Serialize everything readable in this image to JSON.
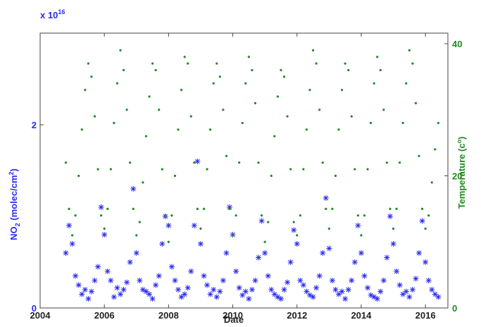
{
  "chart_data": {
    "type": "scatter",
    "xlabel": "Date",
    "ylabel_parts": [
      "NO",
      "2",
      " (molec/cm",
      "2",
      ")"
    ],
    "y2label_parts": [
      "Temperature (c",
      "o",
      ")"
    ],
    "y_multiplier": "x 10",
    "y_multiplier_exponent": "16",
    "xlim": [
      2004,
      2016.7
    ],
    "xticks": [
      2004,
      2006,
      2008,
      2010,
      2012,
      2014,
      2016
    ],
    "ylim": [
      0,
      3
    ],
    "yticks": [
      0,
      2
    ],
    "y2lim": [
      0,
      41.6
    ],
    "y2ticks": [
      0,
      20,
      40
    ],
    "grid": false,
    "x": [
      2004.8,
      2004.9,
      2005.0,
      2005.1,
      2005.2,
      2005.3,
      2005.4,
      2005.5,
      2005.6,
      2005.7,
      2005.8,
      2005.9,
      2006.0,
      2006.1,
      2006.2,
      2006.3,
      2006.4,
      2006.5,
      2006.6,
      2006.7,
      2006.8,
      2006.9,
      2007.0,
      2007.1,
      2007.2,
      2007.3,
      2007.4,
      2007.5,
      2007.6,
      2007.7,
      2007.8,
      2007.9,
      2008.0,
      2008.1,
      2008.2,
      2008.3,
      2008.4,
      2008.5,
      2008.6,
      2008.7,
      2008.8,
      2008.9,
      2009.0,
      2009.1,
      2009.2,
      2009.3,
      2009.4,
      2009.5,
      2009.6,
      2009.7,
      2009.8,
      2009.9,
      2010.0,
      2010.1,
      2010.2,
      2010.3,
      2010.4,
      2010.5,
      2010.6,
      2010.7,
      2010.8,
      2010.9,
      2011.0,
      2011.1,
      2011.2,
      2011.3,
      2011.4,
      2011.5,
      2011.6,
      2011.7,
      2011.8,
      2011.9,
      2012.0,
      2012.1,
      2012.2,
      2012.3,
      2012.4,
      2012.5,
      2012.6,
      2012.7,
      2012.8,
      2012.9,
      2013.0,
      2013.1,
      2013.2,
      2013.3,
      2013.4,
      2013.5,
      2013.6,
      2013.7,
      2013.8,
      2013.9,
      2014.0,
      2014.1,
      2014.2,
      2014.3,
      2014.4,
      2014.5,
      2014.6,
      2014.7,
      2014.8,
      2014.9,
      2015.0,
      2015.1,
      2015.2,
      2015.3,
      2015.4,
      2015.5,
      2015.6,
      2015.7,
      2015.8,
      2015.9,
      2016.0,
      2016.1,
      2016.2,
      2016.3,
      2016.4
    ],
    "series": [
      {
        "name": "NO2",
        "color": "#2b2bf5",
        "axis": "y",
        "marker": "asterisk",
        "values": [
          0.6,
          0.9,
          0.7,
          0.35,
          0.25,
          0.15,
          0.2,
          0.1,
          0.18,
          0.3,
          0.45,
          1.1,
          0.8,
          0.4,
          0.3,
          0.12,
          0.22,
          0.15,
          0.2,
          0.28,
          0.5,
          1.3,
          0.6,
          0.3,
          0.2,
          0.18,
          0.15,
          0.1,
          0.25,
          0.35,
          0.7,
          1.0,
          0.9,
          0.45,
          0.3,
          0.2,
          0.12,
          0.15,
          0.22,
          0.4,
          0.9,
          1.6,
          0.7,
          0.35,
          0.25,
          0.15,
          0.2,
          0.12,
          0.18,
          0.3,
          0.6,
          1.1,
          0.8,
          0.4,
          0.22,
          0.14,
          0.18,
          0.1,
          0.2,
          0.3,
          0.55,
          0.95,
          0.6,
          0.35,
          0.2,
          0.15,
          0.12,
          0.1,
          0.2,
          0.28,
          0.5,
          0.85,
          0.7,
          0.3,
          0.25,
          0.18,
          0.14,
          0.12,
          0.22,
          0.35,
          0.6,
          1.2,
          0.65,
          0.3,
          0.2,
          0.15,
          0.18,
          0.1,
          0.2,
          0.3,
          0.5,
          0.9,
          0.6,
          0.35,
          0.22,
          0.14,
          0.12,
          0.1,
          0.18,
          0.3,
          0.55,
          1.0,
          0.7,
          0.4,
          0.25,
          0.15,
          0.18,
          0.12,
          0.2,
          0.32,
          0.6,
          0.95,
          0.5,
          0.3,
          0.2,
          0.15,
          0.12
        ]
      },
      {
        "name": "Temperature",
        "color": "#1f8a1f",
        "axis": "y2",
        "marker": "dot",
        "values": [
          22,
          15,
          11,
          14,
          20,
          27,
          33,
          37,
          35,
          29,
          21,
          14,
          12,
          15,
          21,
          28,
          34,
          39,
          36,
          30,
          22,
          15,
          11,
          13,
          19,
          26,
          32,
          37,
          36,
          30,
          21,
          14,
          10,
          14,
          20,
          27,
          33,
          38,
          37,
          29,
          22,
          15,
          12,
          15,
          21,
          27,
          34,
          37,
          35,
          30,
          23,
          15,
          11,
          14,
          22,
          28,
          34,
          38,
          36,
          31,
          22,
          14,
          10,
          13,
          20,
          26,
          32,
          36,
          35,
          29,
          21,
          13,
          11,
          14,
          21,
          27,
          33,
          39,
          37,
          30,
          22,
          15,
          12,
          15,
          20,
          27,
          33,
          37,
          36,
          29,
          21,
          14,
          11,
          14,
          21,
          28,
          34,
          38,
          36,
          30,
          22,
          15,
          12,
          15,
          22,
          28,
          34,
          39,
          37,
          31,
          23,
          15,
          12,
          14,
          19,
          24,
          28
        ]
      }
    ]
  }
}
